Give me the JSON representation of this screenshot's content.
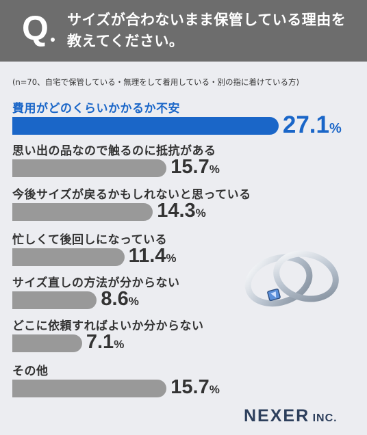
{
  "header": {
    "q_mark": "Q",
    "title": "サイズが合わないまま保管している理由を教えてください。"
  },
  "note": "(n=70、自宅で保管している・無理をして着用している・別の指に着けている方)",
  "chart_data": {
    "type": "bar",
    "orientation": "horizontal",
    "title": "サイズが合わないまま保管している理由を教えてください。",
    "categories": [
      "費用がどのくらいかかるか不安",
      "思い出の品なので触るのに抵抗がある",
      "今後サイズが戻るかもしれないと思っている",
      "忙しくて後回しになっている",
      "サイズ直しの方法が分からない",
      "どこに依頼すればよいか分からない",
      "その他"
    ],
    "values": [
      27.1,
      15.7,
      14.3,
      11.4,
      8.6,
      7.1,
      15.7
    ],
    "value_labels": [
      "27.1",
      "15.7",
      "14.3",
      "11.4",
      "8.6",
      "7.1",
      "15.7"
    ],
    "unit": "%",
    "highlight_index": 0,
    "colors": {
      "highlight": "#1a66c8",
      "bar": "#999999"
    }
  },
  "brand": {
    "name": "NEXER",
    "suffix": "INC."
  }
}
